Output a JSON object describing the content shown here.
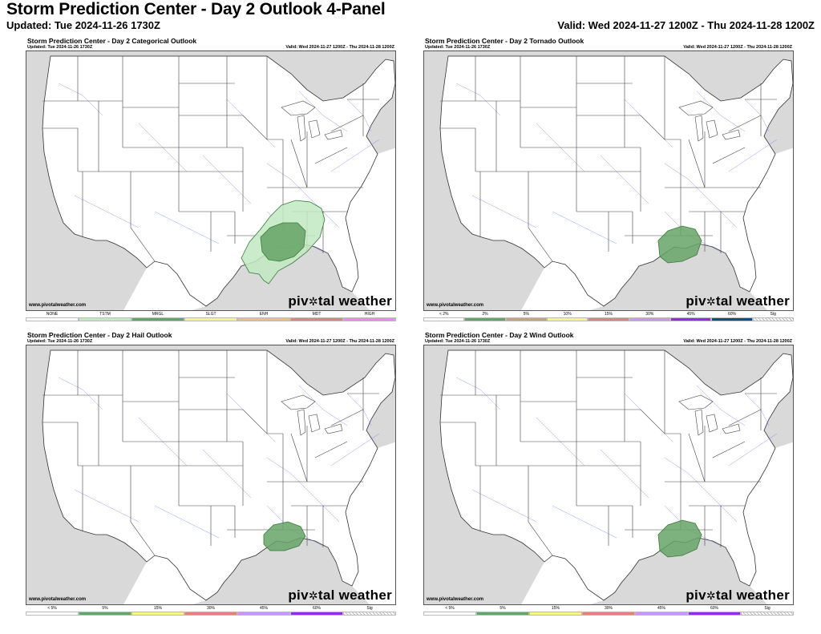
{
  "header": {
    "title": "Storm Prediction Center - Day 2 Outlook 4-Panel",
    "updated": "Updated: Tue 2024-11-26 1730Z",
    "valid": "Valid: Wed 2024-11-27 1200Z - Thu 2024-11-28 1200Z"
  },
  "panels": [
    {
      "title": "Storm Prediction Center - Day 2 Categorical Outlook",
      "updated": "Updated: Tue 2024-11-26 1730Z",
      "valid": "Valid: Wed 2024-11-27 1200Z - Thu 2024-11-28 1200Z",
      "credit": "www.pivotalweather.com",
      "brand_left": "piv",
      "brand_right": "tal weather",
      "risk_areas": [
        "TSTM",
        "MRGL"
      ],
      "legend": [
        {
          "label": "NONE",
          "color": "#ffffff"
        },
        {
          "label": "TSTM",
          "color": "#c1e9c1"
        },
        {
          "label": "MRGL",
          "color": "#66a366"
        },
        {
          "label": "SLGT",
          "color": "#f6f67f"
        },
        {
          "label": "ENH",
          "color": "#e6c27a"
        },
        {
          "label": "MDT",
          "color": "#e67f7f"
        },
        {
          "label": "HIGH",
          "color": "#ff80ff"
        }
      ]
    },
    {
      "title": "Storm Prediction Center - Day 2 Tornado Outlook",
      "updated": "Updated: Tue 2024-11-26 1730Z",
      "valid": "Valid: Wed 2024-11-27 1200Z - Thu 2024-11-28 1200Z",
      "credit": "www.pivotalweather.com",
      "brand_left": "piv",
      "brand_right": "tal weather",
      "risk_areas": [
        "2%"
      ],
      "legend": [
        {
          "label": "< 2%",
          "color": "#ffffff"
        },
        {
          "label": "2%",
          "color": "#66a366"
        },
        {
          "label": "5%",
          "color": "#c4a484"
        },
        {
          "label": "10%",
          "color": "#f6f67f"
        },
        {
          "label": "15%",
          "color": "#e67f7f"
        },
        {
          "label": "30%",
          "color": "#c896f7"
        },
        {
          "label": "45%",
          "color": "#912cee"
        },
        {
          "label": "60%",
          "color": "#104e8b"
        },
        {
          "label": "Sig",
          "color": "hatch"
        }
      ]
    },
    {
      "title": "Storm Prediction Center - Day 2 Hail Outlook",
      "updated": "Updated: Tue 2024-11-26 1730Z",
      "valid": "Valid: Wed 2024-11-27 1200Z - Thu 2024-11-28 1200Z",
      "credit": "www.pivotalweather.com",
      "brand_left": "piv",
      "brand_right": "tal weather",
      "risk_areas": [
        "5%"
      ],
      "legend": [
        {
          "label": "< 5%",
          "color": "#ffffff"
        },
        {
          "label": "5%",
          "color": "#66a366"
        },
        {
          "label": "15%",
          "color": "#f6f67f"
        },
        {
          "label": "30%",
          "color": "#e67f7f"
        },
        {
          "label": "45%",
          "color": "#c896f7"
        },
        {
          "label": "60%",
          "color": "#912cee"
        },
        {
          "label": "Sig",
          "color": "hatch"
        }
      ]
    },
    {
      "title": "Storm Prediction Center - Day 2 Wind Outlook",
      "updated": "Updated: Tue 2024-11-26 1730Z",
      "valid": "Valid: Wed 2024-11-27 1200Z - Thu 2024-11-28 1200Z",
      "credit": "www.pivotalweather.com",
      "brand_left": "piv",
      "brand_right": "tal weather",
      "risk_areas": [
        "5%"
      ],
      "legend": [
        {
          "label": "< 5%",
          "color": "#ffffff"
        },
        {
          "label": "5%",
          "color": "#66a366"
        },
        {
          "label": "15%",
          "color": "#f6f67f"
        },
        {
          "label": "30%",
          "color": "#e67f7f"
        },
        {
          "label": "45%",
          "color": "#c896f7"
        },
        {
          "label": "60%",
          "color": "#912cee"
        },
        {
          "label": "Sig",
          "color": "hatch"
        }
      ]
    }
  ]
}
